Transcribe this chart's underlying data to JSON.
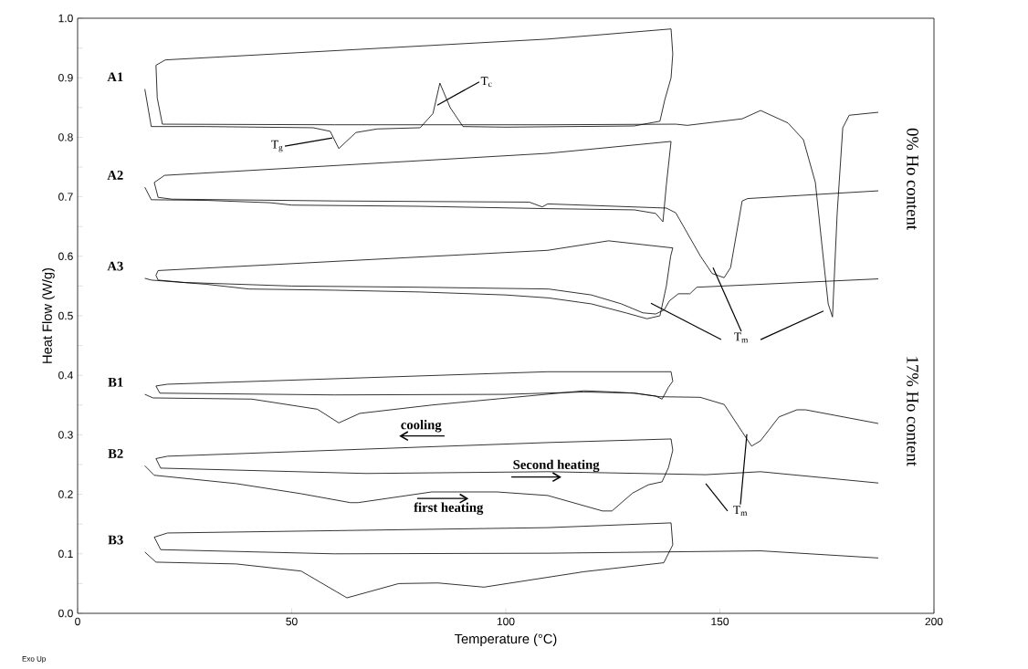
{
  "chart_data": {
    "type": "line",
    "xlabel": "Temperature (°C)",
    "ylabel": "Heat Flow (W/g)",
    "xlim": [
      0,
      200
    ],
    "ylim": [
      0,
      1.0
    ],
    "xticks": [
      0,
      50,
      100,
      150,
      200
    ],
    "yticks": [
      {
        "value": 0,
        "label": "0.0"
      },
      {
        "value": 0.05,
        "label": null
      },
      0.1,
      {
        "value": 0.15,
        "label": null
      },
      0.2,
      {
        "value": 0.25,
        "label": null
      },
      0.3,
      {
        "value": 0.35,
        "label": null
      },
      0.4,
      {
        "value": 0.45,
        "label": null
      },
      0.5,
      {
        "value": 0.55,
        "label": null
      },
      0.6,
      {
        "value": 0.65,
        "label": null
      },
      0.7,
      {
        "value": 0.75,
        "label": null
      },
      0.8,
      {
        "value": 0.85,
        "label": null
      },
      0.9,
      {
        "value": 0.95,
        "label": null
      },
      {
        "value": 1.0,
        "label": "1.0"
      }
    ],
    "series": [
      {
        "name": "A1",
        "color": "#000000",
        "x": [
          15.7,
          17.2,
          30,
          55,
          59,
          61,
          65,
          70,
          80,
          83,
          84.6,
          87,
          90,
          100,
          130,
          136,
          137.1,
          138.6,
          139,
          138.6,
          109.8,
          20.5,
          18.3,
          18.6,
          19.8,
          60,
          109.8,
          139.7,
          142.4,
          155.2,
          159.5,
          165.9,
          169.5,
          172.3,
          173.8,
          175.3,
          176.3,
          177.4,
          178.7,
          180.2,
          187
        ],
        "values": [
          0.881,
          0.818,
          0.818,
          0.816,
          0.81,
          0.781,
          0.808,
          0.814,
          0.816,
          0.84,
          0.891,
          0.85,
          0.818,
          0.817,
          0.819,
          0.827,
          0.862,
          0.9,
          0.94,
          0.982,
          0.965,
          0.93,
          0.921,
          0.866,
          0.822,
          0.821,
          0.821,
          0.822,
          0.82,
          0.831,
          0.845,
          0.824,
          0.796,
          0.724,
          0.621,
          0.52,
          0.498,
          0.673,
          0.816,
          0.837,
          0.842
        ]
      },
      {
        "name": "A2",
        "color": "#000000",
        "x": [
          15.7,
          17.2,
          30,
          45,
          50,
          80,
          110,
          130,
          135,
          136.7,
          137.5,
          138.6,
          109.8,
          20.3,
          17.9,
          18.8,
          22,
          60,
          105.5,
          108.5,
          109.8,
          137.5,
          139.7,
          145.4,
          148.2,
          151,
          152.5,
          155.2,
          156.5,
          187
        ],
        "values": [
          0.716,
          0.695,
          0.694,
          0.69,
          0.686,
          0.684,
          0.68,
          0.678,
          0.672,
          0.658,
          0.72,
          0.793,
          0.773,
          0.736,
          0.724,
          0.699,
          0.696,
          0.693,
          0.691,
          0.683,
          0.688,
          0.681,
          0.673,
          0.601,
          0.571,
          0.564,
          0.581,
          0.693,
          0.697,
          0.71
        ]
      },
      {
        "name": "A3",
        "color": "#000000",
        "x": [
          15.7,
          17.2,
          30,
          40,
          60,
          80,
          100,
          110,
          120,
          128,
          133,
          136,
          137.5,
          138.5,
          139,
          124,
          109.8,
          18.8,
          18.3,
          18.8,
          25,
          50,
          80,
          110,
          120,
          127,
          132,
          135,
          137,
          138.2,
          140.3,
          143,
          144.6,
          187
        ],
        "values": [
          0.563,
          0.56,
          0.553,
          0.545,
          0.543,
          0.54,
          0.535,
          0.53,
          0.52,
          0.505,
          0.495,
          0.5,
          0.55,
          0.6,
          0.614,
          0.626,
          0.61,
          0.576,
          0.568,
          0.56,
          0.556,
          0.55,
          0.548,
          0.545,
          0.535,
          0.52,
          0.505,
          0.503,
          0.51,
          0.525,
          0.537,
          0.537,
          0.548,
          0.562
        ]
      },
      {
        "name": "B1",
        "color": "#000000",
        "x": [
          15.7,
          17.6,
          40.7,
          56,
          61,
          65.9,
          82.7,
          118.3,
          125,
          130,
          135,
          136.5,
          138,
          139,
          138.6,
          109.8,
          21,
          18.3,
          19.2,
          60,
          100,
          118.3,
          130,
          136,
          145.4,
          151,
          155.2,
          157.4,
          159.5,
          163.8,
          168,
          170,
          187
        ],
        "values": [
          0.368,
          0.362,
          0.36,
          0.343,
          0.32,
          0.336,
          0.35,
          0.374,
          0.372,
          0.37,
          0.365,
          0.36,
          0.38,
          0.39,
          0.406,
          0.406,
          0.385,
          0.382,
          0.37,
          0.367,
          0.368,
          0.372,
          0.37,
          0.364,
          0.363,
          0.351,
          0.305,
          0.281,
          0.29,
          0.33,
          0.342,
          0.342,
          0.319
        ]
      },
      {
        "name": "B2",
        "color": "#000000",
        "x": [
          15.7,
          17.9,
          37,
          52.2,
          63.7,
          65.5,
          82.7,
          97.9,
          109.8,
          122.6,
          124.8,
          129.6,
          133.3,
          136.5,
          138,
          139,
          138.6,
          109.8,
          21,
          18.3,
          19.4,
          67.4,
          109.8,
          146.7,
          159.5,
          187
        ],
        "values": [
          0.248,
          0.232,
          0.218,
          0.201,
          0.186,
          0.186,
          0.204,
          0.204,
          0.198,
          0.172,
          0.172,
          0.202,
          0.216,
          0.221,
          0.245,
          0.274,
          0.293,
          0.287,
          0.264,
          0.26,
          0.244,
          0.235,
          0.238,
          0.233,
          0.238,
          0.219
        ]
      },
      {
        "name": "B3",
        "color": "#000000",
        "x": [
          15.7,
          18.3,
          37,
          52.2,
          62.9,
          75,
          84.2,
          94.9,
          118.3,
          136.9,
          139,
          138.6,
          109.8,
          21,
          17.9,
          19.4,
          60,
          109.8,
          159.5,
          187
        ],
        "values": [
          0.103,
          0.086,
          0.083,
          0.071,
          0.026,
          0.05,
          0.051,
          0.044,
          0.07,
          0.085,
          0.115,
          0.152,
          0.144,
          0.135,
          0.128,
          0.107,
          0.1,
          0.101,
          0.105,
          0.093
        ]
      },
      {
        "color": "#000000",
        "x": [
          48.4,
          59.5
        ],
        "values": [
          0.785,
          0.799
        ]
      },
      {
        "color": "#000000",
        "x": [
          84,
          93.8
        ],
        "values": [
          0.854,
          0.893
        ]
      },
      {
        "color": "#000000",
        "x": [
          150.3,
          133.9
        ],
        "values": [
          0.46,
          0.521
        ]
      },
      {
        "color": "#000000",
        "x": [
          155,
          148.4
        ],
        "values": [
          0.474,
          0.581
        ]
      },
      {
        "color": "#000000",
        "x": [
          159.5,
          174.2
        ],
        "values": [
          0.46,
          0.508
        ]
      },
      {
        "color": "#000000",
        "x": [
          151.8,
          146.7
        ],
        "values": [
          0.172,
          0.218
        ]
      },
      {
        "color": "#000000",
        "x": [
          154.8,
          156.3
        ],
        "values": [
          0.183,
          0.301
        ]
      },
      {
        "color": "#000000",
        "x": [
          85.7,
          75.1
        ],
        "values": [
          0.298,
          0.298
        ]
      },
      {
        "color": "#000000",
        "x": [
          101.3,
          113
        ],
        "values": [
          0.229,
          0.229
        ]
      },
      {
        "color": "#000000",
        "x": [
          79.3,
          91.3
        ],
        "values": [
          0.193,
          0.193
        ]
      }
    ],
    "annotations": [
      "T$_{g}$",
      "T$_{c}$",
      "T$_{m}$",
      "T$_{m}$",
      "cooling",
      "Second heating",
      "first heating",
      "0% Ho content",
      "17% Ho content",
      "Exo Up"
    ]
  }
}
